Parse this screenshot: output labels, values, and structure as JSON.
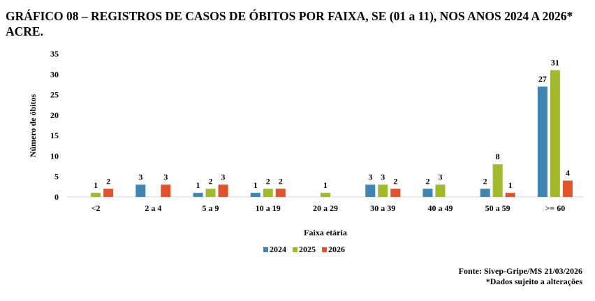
{
  "chart_data": {
    "type": "bar",
    "title": "GRÁFICO 08 – REGISTROS DE CASOS DE ÓBITOS POR FAIXA, SE (01 a 11), NOS ANOS 2024 A 2026* ACRE.",
    "xlabel": "Faixa etária",
    "ylabel": "Número de óbitos",
    "ylim": [
      0,
      35
    ],
    "yticks": [
      0,
      5,
      10,
      15,
      20,
      25,
      30,
      35
    ],
    "grid": false,
    "legend": "bottom",
    "categories": [
      "<2",
      "2 a 4",
      "5 a 9",
      "10 a 19",
      "20 a 29",
      "30 a 39",
      "40 a 49",
      "50 a 59",
      ">= 60"
    ],
    "series": [
      {
        "name": "2024",
        "color": "#3f86b4",
        "values": [
          0,
          3,
          1,
          1,
          0,
          3,
          2,
          2,
          27
        ]
      },
      {
        "name": "2025",
        "color": "#a3b92b",
        "values": [
          1,
          0,
          2,
          2,
          1,
          3,
          3,
          8,
          31
        ]
      },
      {
        "name": "2026",
        "color": "#e1542b",
        "values": [
          2,
          3,
          3,
          2,
          0,
          2,
          0,
          1,
          4
        ]
      }
    ]
  },
  "source": "Fonte: Sivep-Gripe/MS 21/03/2026",
  "note": "*Dados sujeito a alterações"
}
